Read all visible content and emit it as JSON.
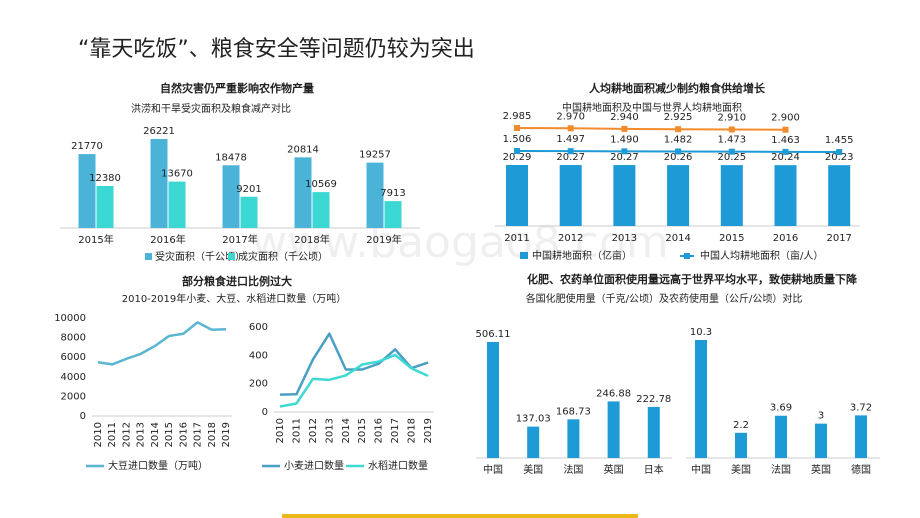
{
  "title": "“靠天吃饭”、粮食安全等问题仍较为突出",
  "watermark": "www.baogao8.com",
  "chart_data": [
    {
      "type": "bar",
      "title": "自然灾害仍严重影响农作物产量",
      "subtitle": "洪涝和干旱受灾面积及粮食减产对比",
      "categories": [
        "2015年",
        "2016年",
        "2017年",
        "2018年",
        "2019年"
      ],
      "series": [
        {
          "name": "受灾面积（千公顷）",
          "color": "#4bb3d8",
          "values": [
            21770,
            26221,
            18478,
            20814,
            19257
          ]
        },
        {
          "name": "成灾面积（千公顷）",
          "color": "#3ad7d3",
          "values": [
            12380,
            13670,
            9201,
            10569,
            7913
          ]
        }
      ]
    },
    {
      "type": "combo",
      "title": "人均耕地面积减少制约粮食供给增长",
      "subtitle": "中国耕地面积及中国与世界人均耕地面积",
      "categories": [
        "2011",
        "2012",
        "2013",
        "2014",
        "2015",
        "2016",
        "2017"
      ],
      "series": [
        {
          "name": "中国耕地面积（亿亩）",
          "type": "bar",
          "color": "#1e9ad6",
          "values": [
            20.29,
            20.27,
            20.27,
            20.26,
            20.25,
            20.24,
            20.23
          ]
        },
        {
          "name": "中国人均耕地面积（亩/人）",
          "type": "line",
          "color": "#1e9ad6",
          "values": [
            1.506,
            1.497,
            1.49,
            1.482,
            1.473,
            1.463,
            1.455
          ],
          "value_labels": [
            "1.506",
            "1.497",
            "1.490",
            "1.482",
            "1.473",
            "1.463",
            "1.455"
          ]
        },
        {
          "type": "line",
          "color": "#f28b2c",
          "values": [
            2.985,
            2.97,
            2.94,
            2.925,
            2.91,
            2.9,
            null
          ],
          "value_labels": [
            "2.985",
            "2.970",
            "2.940",
            "2.925",
            "2.910",
            "2.900",
            null
          ]
        }
      ]
    },
    {
      "type": "line",
      "title": "部分粮食进口比例过大",
      "subtitle": "2010-2019年小麦、大豆、水稻进口数量（万吨）",
      "categories": [
        "2010",
        "2011",
        "2012",
        "2013",
        "2014",
        "2015",
        "2016",
        "2017",
        "2018",
        "2019"
      ],
      "series": [
        {
          "name": "大豆进口数量（万吨）",
          "color": "#5ab6d2",
          "values": [
            5480,
            5264,
            5838,
            6338,
            7140,
            8169,
            8391,
            9553,
            8803,
            8851
          ]
        }
      ],
      "ylim": [
        0,
        10000
      ],
      "yticks": [
        0,
        2000,
        4000,
        6000,
        8000,
        10000
      ]
    },
    {
      "type": "line",
      "categories": [
        "2010",
        "2011",
        "2012",
        "2013",
        "2014",
        "2015",
        "2016",
        "2017",
        "2018",
        "2019"
      ],
      "series": [
        {
          "name": "小麦进口数量",
          "color": "#4a9fc4",
          "values": [
            123,
            125,
            370,
            553,
            300,
            300,
            341,
            442,
            310,
            349
          ]
        },
        {
          "name": "水稻进口数量",
          "color": "#3dd9d2",
          "values": [
            39,
            60,
            234,
            227,
            258,
            335,
            356,
            403,
            308,
            255
          ]
        }
      ],
      "ylim": [
        0,
        600
      ],
      "yticks": [
        0,
        200,
        400,
        600
      ]
    },
    {
      "type": "bar",
      "title": "化肥、农药单位面积使用量远高于世界平均水平，致使耕地质量下降",
      "subtitle": "各国化肥使用量（千克/公顷）及农药使用量（公斤/公顷）对比",
      "categories": [
        "中国",
        "美国",
        "法国",
        "英国",
        "日本"
      ],
      "values": [
        506.11,
        137.03,
        168.73,
        246.88,
        222.78
      ],
      "color": "#1e9ad6"
    },
    {
      "type": "bar",
      "categories": [
        "中国",
        "美国",
        "法国",
        "英国",
        "德国"
      ],
      "values": [
        10.3,
        2.2,
        3.69,
        3,
        3.72
      ],
      "color": "#1e9ad6"
    }
  ]
}
